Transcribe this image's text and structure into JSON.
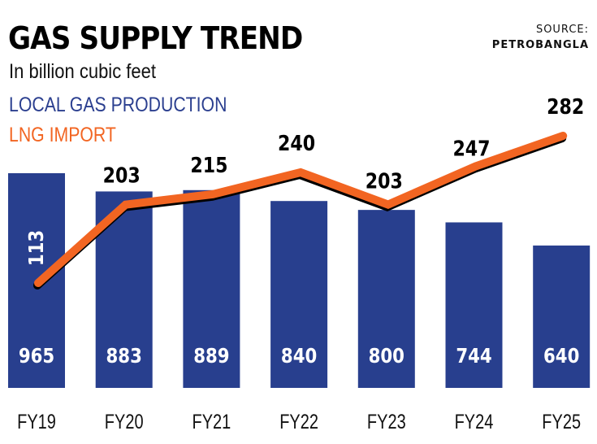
{
  "header": {
    "title": "GAS SUPPLY TREND",
    "subtitle": "In billion cubic feet",
    "source_label": "SOURCE:",
    "source_name": "PETROBANGLA"
  },
  "legend": [
    {
      "label": "LOCAL GAS PRODUCTION",
      "color": "#283f8e"
    },
    {
      "label": "LNG IMPORT",
      "color": "#f26522"
    }
  ],
  "chart_data": {
    "type": "bar",
    "title": "GAS SUPPLY TREND",
    "subtitle": "In billion cubic feet",
    "xlabel": "",
    "ylabel": "Billion cubic feet",
    "categories": [
      "FY19",
      "FY20",
      "FY21",
      "FY22",
      "FY23",
      "FY24",
      "FY25"
    ],
    "series": [
      {
        "name": "LOCAL GAS PRODUCTION",
        "type": "bar",
        "color": "#283f8e",
        "values": [
          965,
          883,
          889,
          840,
          800,
          744,
          640
        ]
      },
      {
        "name": "LNG IMPORT",
        "type": "line",
        "color": "#f26522",
        "values": [
          113,
          203,
          215,
          240,
          203,
          247,
          282
        ]
      }
    ],
    "grid": false,
    "legend_position": "top-left",
    "source": "PETROBANGLA"
  }
}
